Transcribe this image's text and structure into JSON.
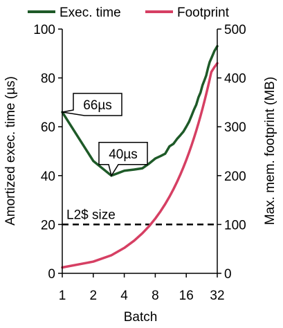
{
  "chart_data": {
    "type": "line",
    "xlabel": "Batch",
    "ylabel_left": "Amortized exec. time (µs)",
    "ylabel_right": "Max. mem. footprint (MB)",
    "x_tick_labels": [
      "1",
      "2",
      "4",
      "8",
      "16",
      "32"
    ],
    "x_scale": "log2",
    "xlim": [
      1,
      32
    ],
    "ylim_left": [
      0,
      100
    ],
    "ylim_right": [
      0,
      500
    ],
    "y_ticks_left": [
      "0",
      "20",
      "40",
      "60",
      "80",
      "100"
    ],
    "y_ticks_right": [
      "0",
      "100",
      "200",
      "300",
      "400",
      "500"
    ],
    "grid": false,
    "legend_position": "top",
    "series": [
      {
        "name": "Exec. time",
        "axis": "left",
        "color": "#1e5a28",
        "x": [
          1,
          2,
          3,
          4,
          5,
          6,
          7,
          8,
          9,
          10,
          11,
          12,
          13,
          14,
          15,
          16,
          17,
          18,
          19,
          20,
          21,
          22,
          23,
          24,
          25,
          26,
          27,
          28,
          29,
          30,
          31,
          32
        ],
        "y": [
          66,
          46,
          40,
          42,
          42.5,
          43,
          45,
          47,
          48,
          49,
          52,
          53,
          55,
          56.5,
          58,
          60,
          62,
          64.5,
          67,
          69,
          72,
          74,
          77,
          79,
          81,
          84,
          86.5,
          88,
          89.5,
          91,
          92,
          93
        ]
      },
      {
        "name": "Footprint",
        "axis": "right",
        "color": "#d63f63",
        "x": [
          1,
          2,
          3,
          4,
          5,
          6,
          7,
          8,
          9,
          10,
          11,
          12,
          13,
          14,
          15,
          16,
          17,
          18,
          19,
          20,
          21,
          22,
          23,
          24,
          25,
          26,
          27,
          28,
          29,
          30,
          31,
          32
        ],
        "y": [
          12,
          24,
          37,
          52,
          67,
          82,
          97,
          112,
          127,
          142,
          157,
          172,
          187,
          202,
          217,
          232,
          247,
          262,
          277,
          292,
          307,
          322,
          337,
          352,
          367,
          382,
          397,
          412,
          417,
          422,
          426,
          430
        ]
      }
    ],
    "annotations": [
      {
        "text": "66µs",
        "x": 1,
        "y": 66,
        "axis": "left"
      },
      {
        "text": "40µs",
        "x": 3,
        "y": 40,
        "axis": "left"
      }
    ],
    "reference_line": {
      "label": "L2$ size",
      "y": 100,
      "axis": "right",
      "style": "dashed"
    }
  }
}
